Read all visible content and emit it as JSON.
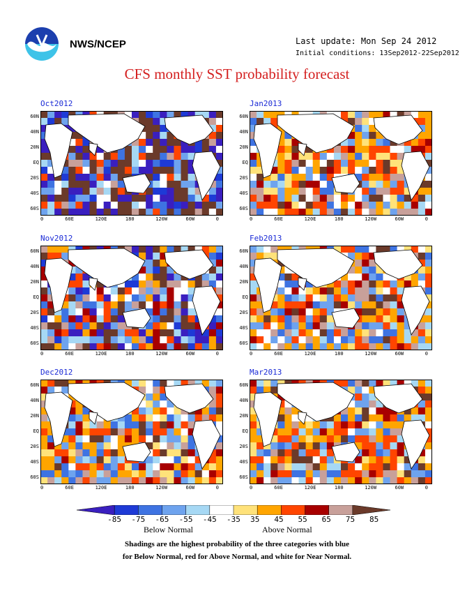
{
  "header": {
    "org": "NWS/NCEP",
    "last_update": "Last update: Mon Sep 24 2012",
    "initial_conditions": "Initial conditions: 13Sep2012-22Sep2012",
    "title": "CFS monthly SST probability forecast"
  },
  "panels": [
    {
      "label": "Oct2012",
      "tone": "mixed-strong"
    },
    {
      "label": "Jan2013",
      "tone": "above"
    },
    {
      "label": "Nov2012",
      "tone": "mixed"
    },
    {
      "label": "Feb2013",
      "tone": "above"
    },
    {
      "label": "Dec2012",
      "tone": "above"
    },
    {
      "label": "Mar2013",
      "tone": "above"
    }
  ],
  "axes": {
    "lat_ticks": [
      "60N",
      "40N",
      "20N",
      "EQ",
      "20S",
      "40S",
      "60S"
    ],
    "lon_ticks": [
      "0",
      "60E",
      "120E",
      "180",
      "120W",
      "60W",
      "0"
    ]
  },
  "colorbar": {
    "ticks": [
      "-85",
      "-75",
      "-65",
      "-55",
      "-45",
      "-35",
      "35",
      "45",
      "55",
      "65",
      "75",
      "85"
    ],
    "colors": [
      "#3a1fbf",
      "#1e3ad6",
      "#3e73e2",
      "#6ea3ee",
      "#a6d8f4",
      "#ffffff",
      "#ffe27a",
      "#ffa500",
      "#ff4500",
      "#a80000",
      "#c8a09a",
      "#6b3a2a"
    ],
    "below_label": "Below Normal",
    "above_label": "Above Normal"
  },
  "note_lines": [
    "Shadings are the highest probability of the three categories with blue",
    "for Below Normal, red for Above Normal, and white for Near Normal."
  ]
}
